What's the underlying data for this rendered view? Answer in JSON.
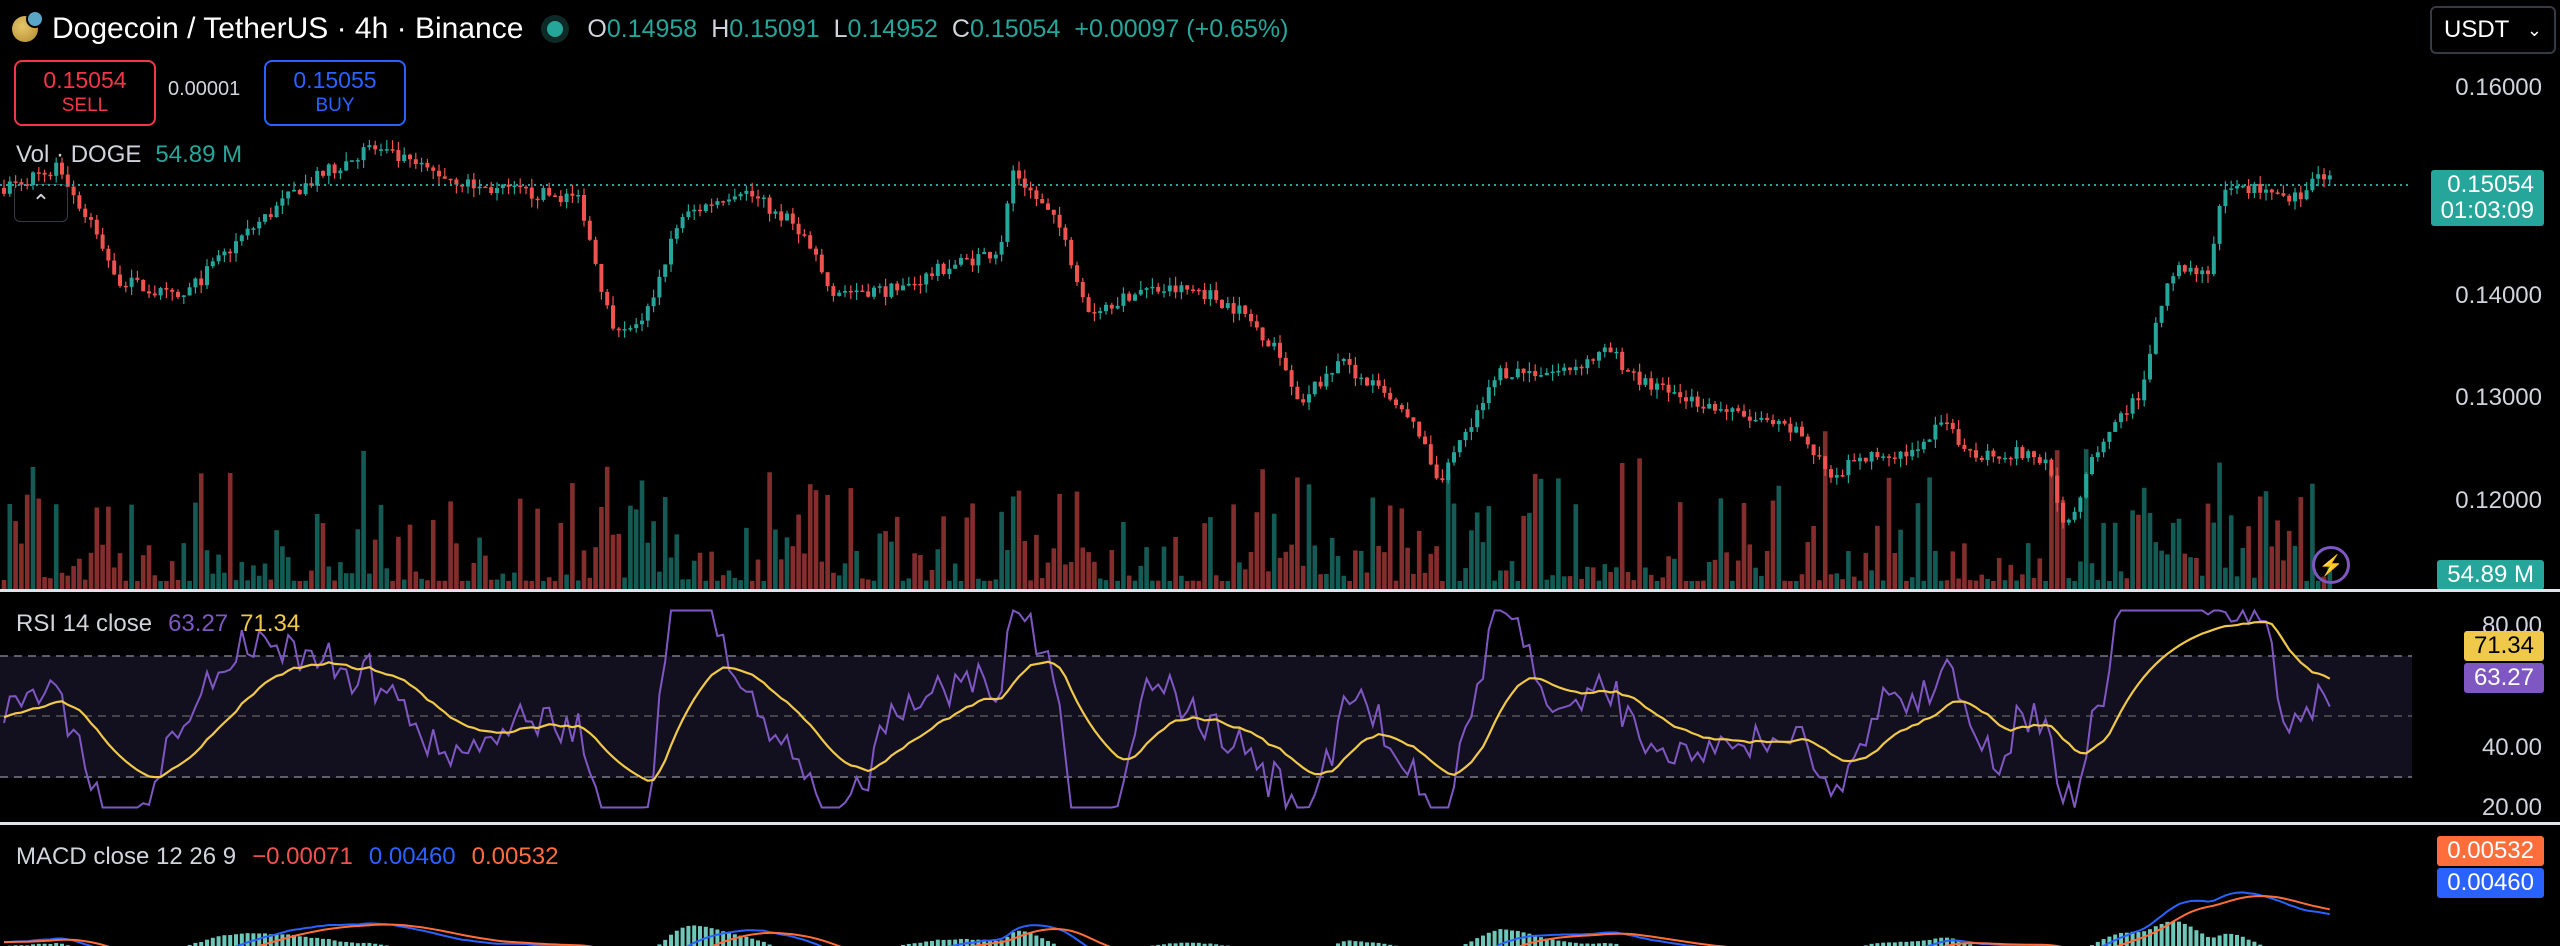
{
  "header": {
    "symbol_title": "Dogecoin / TetherUS · 4h · Binance",
    "ohlc": [
      {
        "k": "O",
        "v": "0.14958"
      },
      {
        "k": "H",
        "v": "0.15091"
      },
      {
        "k": "L",
        "v": "0.14952"
      },
      {
        "k": "C",
        "v": "0.15054"
      }
    ],
    "change": "+0.00097 (+0.65%)"
  },
  "trade": {
    "sell_price": "0.15054",
    "sell_label": "SELL",
    "spread": "0.00001",
    "buy_price": "0.15055",
    "buy_label": "BUY"
  },
  "currency_select": {
    "value": "USDT"
  },
  "volume": {
    "label": "Vol · DOGE",
    "value": "54.89 M",
    "tag": "54.89 M"
  },
  "price_axis": {
    "ticks": [
      "0.16000",
      "0.14000",
      "0.13000",
      "0.12000"
    ],
    "current_price": "0.15054",
    "countdown": "01:03:09"
  },
  "rsi": {
    "label": "RSI 14 close",
    "value": "63.27",
    "ma_value": "71.34",
    "ticks": [
      "80.00",
      "40.00",
      "20.00"
    ]
  },
  "macd": {
    "label": "MACD close 12 26 9",
    "hist": "−0.00071",
    "macd": "0.00460",
    "signal": "0.00532",
    "tag_signal": "0.00532",
    "tag_macd": "0.00460"
  },
  "colors": {
    "up": "#26a69a",
    "down": "#ef5350",
    "rsi": "#7e57c2",
    "rsi_ma": "#f0c94a",
    "macd": "#2962ff",
    "signal": "#ff6d3a"
  }
}
